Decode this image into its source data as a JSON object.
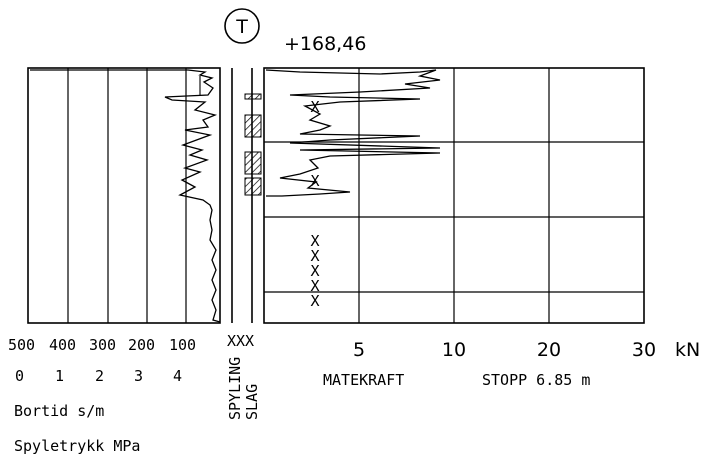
{
  "header": {
    "marker_symbol": "T",
    "elevation": "+168,46"
  },
  "left_panel": {
    "bortid_ticks": [
      "500",
      "400",
      "300",
      "200",
      "100"
    ],
    "spyletrykk_ticks": [
      "0",
      "1",
      "2",
      "3",
      "4"
    ],
    "bortid_label": "Bortid s/m",
    "spyletrykk_label": "Spyletrykk MPa"
  },
  "middle_panel": {
    "marker_row": "XXX",
    "spyling_label": "SPYLING",
    "slag_label": "SLAG"
  },
  "right_panel": {
    "force_ticks": [
      "5",
      "10",
      "20",
      "30"
    ],
    "unit": "kN",
    "matekraft_label": "MATEKRAFT",
    "stop_label": "STOPP 6.85 m",
    "x_markers": [
      "X",
      "X",
      "X",
      "X",
      "X",
      "X",
      "X"
    ]
  },
  "colors": {
    "ink": "#000000",
    "paper": "#ffffff"
  }
}
